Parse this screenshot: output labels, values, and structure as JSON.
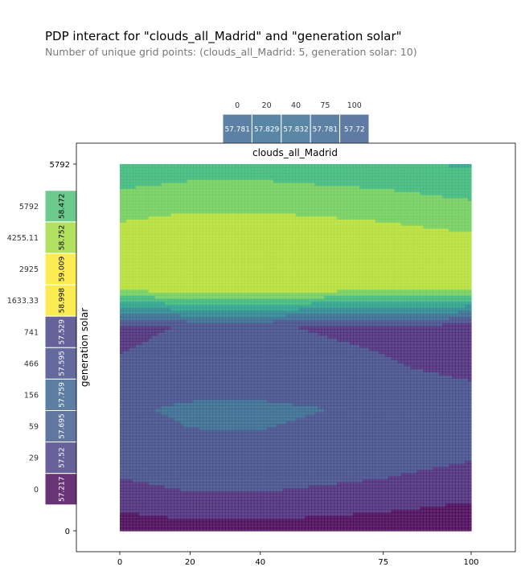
{
  "title": "PDP interact for \"clouds_all_Madrid\" and \"generation solar\"",
  "subtitle": "Number of unique grid points: (clouds_all_Madrid: 5, generation solar: 10)",
  "chart_data": {
    "type": "heatmap",
    "xlabel": "clouds_all_Madrid",
    "ylabel": "generation solar",
    "x_grid": [
      0,
      20,
      40,
      75,
      100
    ],
    "y_grid": [
      0,
      29,
      59,
      156,
      466,
      741,
      1633.33,
      2925,
      4255.11,
      5792
    ],
    "x_ticks": [
      0,
      20,
      40,
      75,
      100
    ],
    "y_ticks": [
      0,
      29,
      59,
      156,
      466,
      741,
      1633.33,
      2925,
      4255.11,
      5792
    ],
    "x_tick_labels": [
      "0",
      "20",
      "40",
      "75",
      "100"
    ],
    "y_tick_labels": [
      "0",
      "29",
      "59",
      "156",
      "466",
      "741",
      "1633.33",
      "2925",
      "4255.11",
      "5792"
    ],
    "x_marginal": {
      "labels": [
        "0",
        "20",
        "40",
        "75",
        "100"
      ],
      "values": [
        57.781,
        57.829,
        57.832,
        57.781,
        57.72
      ]
    },
    "y_marginal": {
      "labels": [
        "0",
        "29",
        "59",
        "156",
        "466",
        "741",
        "1633.33",
        "2925",
        "4255.11",
        "5792"
      ],
      "values": [
        57.217,
        57.52,
        57.695,
        57.759,
        57.595,
        57.529,
        58.998,
        59.009,
        58.752,
        58.472
      ]
    },
    "colormap": "viridis"
  }
}
